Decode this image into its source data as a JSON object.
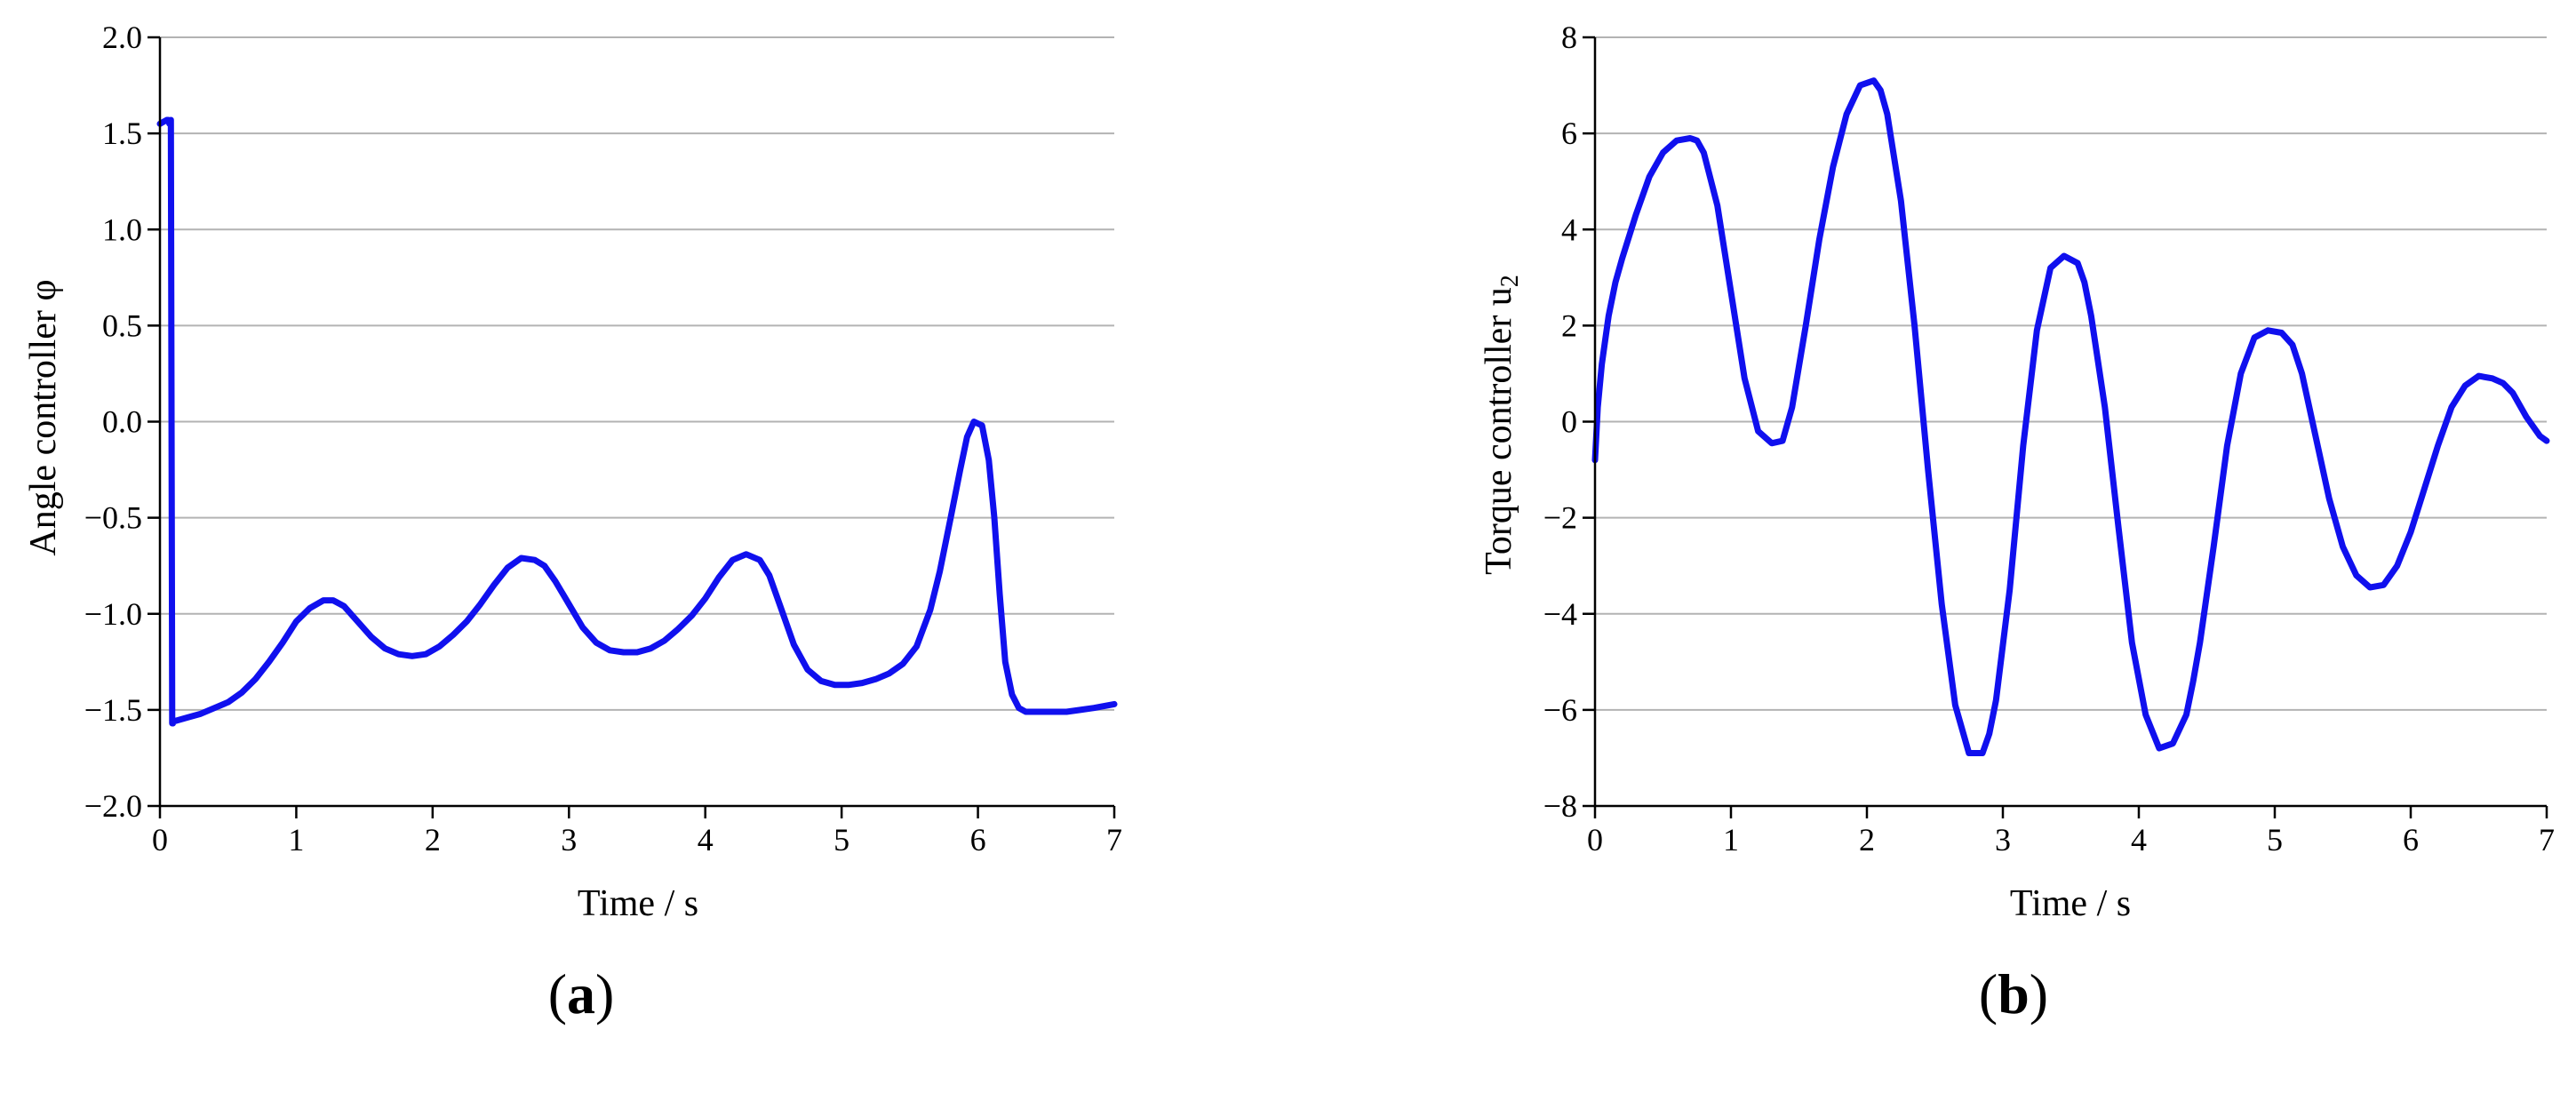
{
  "colors": {
    "series": "#1010ee",
    "grid": "#b3b3b3",
    "axis": "#000000"
  },
  "chart_data": [
    {
      "type": "line",
      "panel_label": "a",
      "xlabel": "Time / s",
      "ylabel": "Angle controller φ",
      "xlim": [
        0,
        7
      ],
      "ylim": [
        -2.0,
        2.0
      ],
      "xticks": [
        0,
        1,
        2,
        3,
        4,
        5,
        6,
        7
      ],
      "xtick_labels": [
        "0",
        "1",
        "2",
        "3",
        "4",
        "5",
        "6",
        "7"
      ],
      "yticks": [
        2.0,
        1.5,
        1.0,
        0.5,
        0.0,
        -0.5,
        -1.0,
        -1.5,
        -2.0
      ],
      "ytick_labels": [
        "2.0",
        "1.5",
        "1.0",
        "0.5",
        "0.0",
        "−0.5",
        "−1.0",
        "−1.5",
        "−2.0"
      ],
      "grid": "horizontal",
      "series": [
        {
          "x": [
            0.0,
            0.05,
            0.06,
            0.07,
            0.08,
            0.09,
            0.095,
            0.1,
            0.2,
            0.3,
            0.4,
            0.5,
            0.6,
            0.7,
            0.8,
            0.9,
            1.0,
            1.1,
            1.2,
            1.27,
            1.35,
            1.45,
            1.55,
            1.65,
            1.75,
            1.85,
            1.95,
            2.05,
            2.15,
            2.25,
            2.35,
            2.45,
            2.55,
            2.65,
            2.75,
            2.82,
            2.9,
            3.0,
            3.1,
            3.2,
            3.3,
            3.4,
            3.5,
            3.6,
            3.7,
            3.8,
            3.9,
            4.0,
            4.1,
            4.2,
            4.3,
            4.4,
            4.47,
            4.55,
            4.65,
            4.75,
            4.85,
            4.95,
            5.05,
            5.15,
            5.25,
            5.35,
            5.45,
            5.55,
            5.65,
            5.72,
            5.8,
            5.87,
            5.92,
            5.97,
            6.03,
            6.08,
            6.12,
            6.16,
            6.2,
            6.25,
            6.3,
            6.35,
            6.45,
            6.55,
            6.65,
            6.75,
            6.85,
            7.0
          ],
          "y": [
            1.55,
            1.57,
            1.57,
            1.55,
            1.57,
            -1.57,
            -1.57,
            -1.56,
            -1.54,
            -1.52,
            -1.49,
            -1.46,
            -1.41,
            -1.34,
            -1.25,
            -1.15,
            -1.04,
            -0.97,
            -0.93,
            -0.93,
            -0.96,
            -1.04,
            -1.12,
            -1.18,
            -1.21,
            -1.22,
            -1.21,
            -1.17,
            -1.11,
            -1.04,
            -0.95,
            -0.85,
            -0.76,
            -0.71,
            -0.72,
            -0.75,
            -0.83,
            -0.95,
            -1.07,
            -1.15,
            -1.19,
            -1.2,
            -1.2,
            -1.18,
            -1.14,
            -1.08,
            -1.01,
            -0.92,
            -0.81,
            -0.72,
            -0.69,
            -0.72,
            -0.8,
            -0.96,
            -1.16,
            -1.29,
            -1.35,
            -1.37,
            -1.37,
            -1.36,
            -1.34,
            -1.31,
            -1.26,
            -1.17,
            -0.98,
            -0.78,
            -0.5,
            -0.25,
            -0.08,
            0.0,
            -0.02,
            -0.2,
            -0.5,
            -0.9,
            -1.25,
            -1.42,
            -1.49,
            -1.51,
            -1.51,
            -1.51,
            -1.51,
            -1.5,
            -1.49,
            -1.47
          ]
        }
      ]
    },
    {
      "type": "line",
      "panel_label": "b",
      "xlabel": "Time / s",
      "ylabel": "Torque controller u",
      "ylabel_subscript": "2",
      "xlim": [
        0,
        7
      ],
      "ylim": [
        -8,
        8
      ],
      "xticks": [
        0,
        1,
        2,
        3,
        4,
        5,
        6,
        7
      ],
      "xtick_labels": [
        "0",
        "1",
        "2",
        "3",
        "4",
        "5",
        "6",
        "7"
      ],
      "yticks": [
        8,
        6,
        4,
        2,
        0,
        -2,
        -4,
        -6,
        -8
      ],
      "ytick_labels": [
        "8",
        "6",
        "4",
        "2",
        "0",
        "−2",
        "−4",
        "−6",
        "−8"
      ],
      "grid": "horizontal",
      "series": [
        {
          "x": [
            0.0,
            0.02,
            0.05,
            0.1,
            0.15,
            0.2,
            0.3,
            0.4,
            0.5,
            0.6,
            0.7,
            0.75,
            0.8,
            0.9,
            1.0,
            1.1,
            1.2,
            1.3,
            1.38,
            1.45,
            1.55,
            1.65,
            1.75,
            1.85,
            1.95,
            2.05,
            2.1,
            2.15,
            2.25,
            2.35,
            2.45,
            2.55,
            2.65,
            2.75,
            2.85,
            2.9,
            2.95,
            3.05,
            3.15,
            3.25,
            3.35,
            3.45,
            3.55,
            3.6,
            3.65,
            3.75,
            3.85,
            3.95,
            4.05,
            4.15,
            4.25,
            4.35,
            4.4,
            4.45,
            4.55,
            4.65,
            4.75,
            4.85,
            4.95,
            5.05,
            5.13,
            5.2,
            5.3,
            5.4,
            5.5,
            5.6,
            5.7,
            5.8,
            5.85,
            5.9,
            6.0,
            6.1,
            6.2,
            6.3,
            6.4,
            6.5,
            6.6,
            6.68,
            6.75,
            6.85,
            6.95,
            7.0
          ],
          "y": [
            -0.8,
            0.3,
            1.2,
            2.2,
            2.9,
            3.4,
            4.3,
            5.1,
            5.6,
            5.85,
            5.9,
            5.85,
            5.6,
            4.5,
            2.7,
            0.9,
            -0.2,
            -0.45,
            -0.4,
            0.3,
            2.0,
            3.8,
            5.3,
            6.4,
            7.0,
            7.1,
            6.9,
            6.4,
            4.6,
            2.0,
            -1.0,
            -3.8,
            -5.9,
            -6.9,
            -6.9,
            -6.5,
            -5.8,
            -3.5,
            -0.5,
            1.9,
            3.2,
            3.45,
            3.3,
            2.9,
            2.2,
            0.3,
            -2.2,
            -4.6,
            -6.1,
            -6.8,
            -6.7,
            -6.1,
            -5.4,
            -4.6,
            -2.6,
            -0.5,
            1.0,
            1.75,
            1.9,
            1.85,
            1.6,
            1.0,
            -0.3,
            -1.6,
            -2.6,
            -3.2,
            -3.45,
            -3.4,
            -3.2,
            -3.0,
            -2.3,
            -1.4,
            -0.5,
            0.3,
            0.75,
            0.95,
            0.9,
            0.8,
            0.6,
            0.1,
            -0.3,
            -0.4
          ]
        }
      ]
    }
  ]
}
